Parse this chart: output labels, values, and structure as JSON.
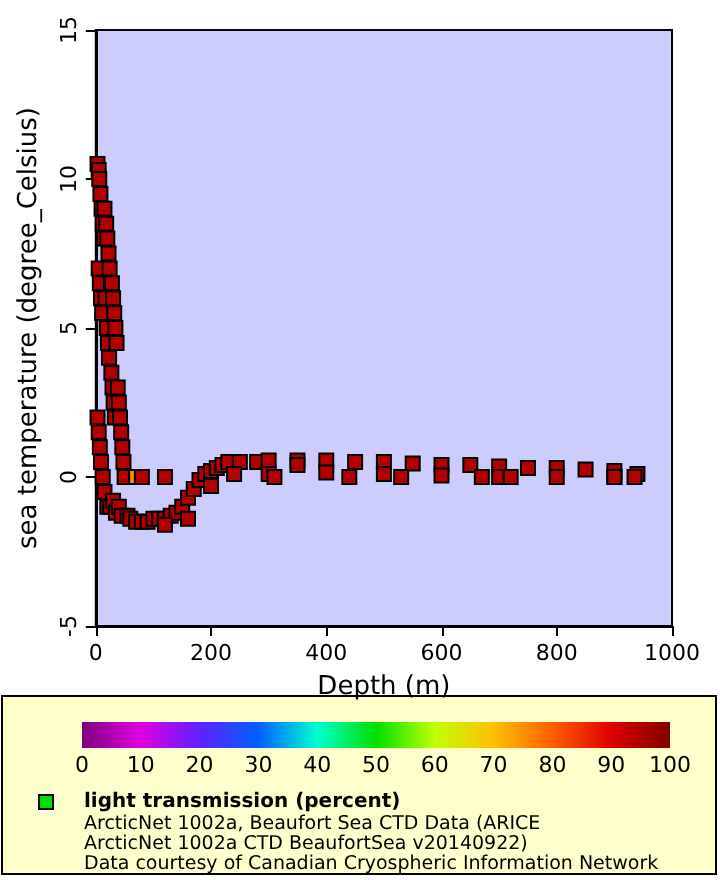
{
  "chart_data": {
    "type": "scatter",
    "xlabel": "Depth (m)",
    "ylabel": "sea temperature (degree_Celsius)",
    "clabel": "light transmission (percent)",
    "annotations": [
      "ArcticNet 1002a, Beaufort Sea CTD Data (ARICE",
      "ArcticNet 1002a CTD BeaufortSea v20140922)",
      "Data courtesy of Canadian Cryospheric Information Network"
    ],
    "xlim": [
      0,
      1000
    ],
    "xticks": [
      0,
      200,
      400,
      600,
      800,
      1000
    ],
    "ylim": [
      -5,
      15
    ],
    "yticks": [
      -5,
      0,
      5,
      10,
      15
    ],
    "clim": [
      0,
      100
    ],
    "cticks": [
      0,
      10,
      20,
      30,
      40,
      50,
      60,
      70,
      80,
      90,
      100
    ],
    "grid": false,
    "marker": "square",
    "series": [
      {
        "x": [
          3,
          5,
          6,
          8,
          10,
          12,
          14,
          5,
          7,
          9,
          11,
          15,
          18,
          20,
          22,
          24,
          26,
          17,
          19,
          21,
          23,
          28,
          30,
          32,
          34,
          36,
          27,
          29,
          31,
          33,
          38,
          40,
          42,
          44,
          46,
          48,
          50,
          3,
          5,
          7,
          9,
          12,
          15,
          20,
          25,
          30,
          35,
          40,
          45,
          55,
          60,
          70,
          80,
          90,
          100,
          110,
          120,
          130,
          140,
          150,
          160,
          170,
          180,
          190,
          200,
          210,
          220,
          230,
          250,
          280,
          300,
          350,
          400,
          450,
          500,
          550,
          600,
          650,
          700,
          750,
          800,
          850,
          900,
          940,
          120,
          160,
          200,
          240,
          300,
          400,
          500,
          600,
          700,
          800,
          900,
          70,
          80,
          120,
          310,
          350,
          440,
          530,
          670,
          720,
          900,
          935
        ],
        "values": [
          10.5,
          10.3,
          10,
          9.5,
          9,
          8.5,
          8,
          7,
          6.5,
          6,
          5.5,
          9,
          8.5,
          8,
          7.5,
          7,
          6.5,
          6,
          5,
          4.5,
          4,
          6.5,
          6,
          5.5,
          5,
          4.5,
          3.5,
          3,
          2.5,
          2,
          3,
          2.5,
          2,
          1.5,
          1,
          0.5,
          0,
          2,
          1.5,
          1,
          0.5,
          0,
          -0.5,
          -1,
          -1,
          -0.8,
          -1.2,
          -1,
          -1.3,
          -1.3,
          -1.4,
          -1.5,
          -1.5,
          -1.5,
          -1.4,
          -1.4,
          -1.4,
          -1.3,
          -1.2,
          -1,
          -0.7,
          -0.4,
          -0.1,
          0.1,
          0.2,
          0.3,
          0.4,
          0.5,
          0.5,
          0.5,
          0.55,
          0.55,
          0.55,
          0.5,
          0.5,
          0.45,
          0.4,
          0.4,
          0.35,
          0.3,
          0.3,
          0.25,
          0.2,
          0.1,
          -1.6,
          -1.4,
          -0.3,
          0.1,
          0.1,
          0.15,
          0.1,
          0.05,
          0,
          0,
          0,
          0,
          0,
          0,
          0,
          0.4,
          0,
          0,
          0,
          0,
          0,
          0
        ],
        "cvalues": [
          95,
          95,
          95,
          95,
          95,
          95,
          95,
          95,
          95,
          95,
          95,
          95,
          95,
          95,
          95,
          95,
          95,
          95,
          95,
          95,
          95,
          95,
          95,
          95,
          95,
          95,
          95,
          95,
          95,
          95,
          95,
          95,
          95,
          95,
          95,
          95,
          95,
          95,
          95,
          95,
          95,
          95,
          95,
          95,
          95,
          95,
          95,
          95,
          95,
          95,
          95,
          95,
          95,
          95,
          95,
          95,
          95,
          95,
          95,
          95,
          95,
          95,
          95,
          95,
          95,
          95,
          95,
          95,
          95,
          95,
          95,
          95,
          95,
          95,
          95,
          95,
          95,
          95,
          95,
          95,
          95,
          95,
          95,
          95,
          95,
          95,
          95,
          95,
          95,
          95,
          95,
          95,
          95,
          95,
          95,
          75,
          95,
          95,
          95,
          95,
          95,
          95,
          95,
          95,
          95,
          95
        ]
      }
    ]
  }
}
